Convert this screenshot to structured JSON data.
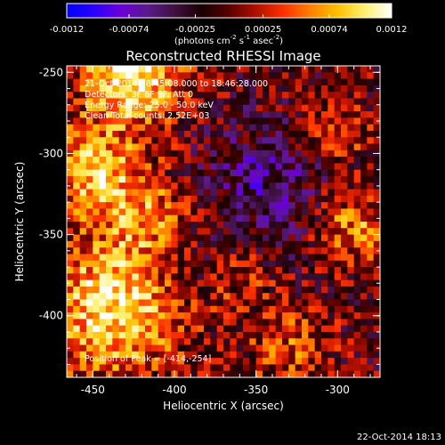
{
  "chart_data": {
    "type": "heatmap",
    "title": "Reconstructed RHESSI Image",
    "xlabel": "Heliocentric X (arcsec)",
    "ylabel": "Heliocentric Y (arcsec)",
    "xlim": [
      -466,
      -274
    ],
    "ylim": [
      -438,
      -246
    ],
    "x_ticks": [
      "-450",
      "-400",
      "-350",
      "-300"
    ],
    "x_tick_values": [
      -450,
      -400,
      -350,
      -300
    ],
    "y_ticks": [
      "-250",
      "-300",
      "-350",
      "-400"
    ],
    "y_tick_values": [
      -250,
      -300,
      -350,
      -400
    ],
    "grid": false,
    "colorbar": {
      "ticks": [
        "-0.0012",
        "-0.00074",
        "-0.00025",
        "0.00025",
        "0.00074",
        "0.0012"
      ],
      "tick_values": [
        -0.0012,
        -0.00074,
        -0.00025,
        0.00025,
        0.00074,
        0.0012
      ],
      "range": [
        -0.0012,
        0.0012
      ],
      "unit_label": "(photons cm",
      "unit_exp1": "-2",
      "unit_mid": " s",
      "unit_exp2": "-1",
      "unit_mid2": " asec",
      "unit_exp3": "-2",
      "unit_end": ")",
      "colormap": [
        "#0000ff",
        "#2a00ff",
        "#6a00d8",
        "#5a1a8a",
        "#401040",
        "#1a0000",
        "#5a0000",
        "#b01000",
        "#ff3000",
        "#ff8000",
        "#ffc000",
        "#fff070",
        "#ffffff"
      ]
    },
    "annotations": [
      "21-Oct-2014 18:45:08.000 to 18:46:28.000",
      "Detectors: 3F 6F 9F, Att 0",
      "Energy Range: 25.0 - 50.0 keV",
      "Clean     Total counts: 2.52E+03"
    ],
    "peak_label": "Position of Peak = [-414,-254]",
    "peak_position": [
      -414,
      -254
    ],
    "sources": [
      {
        "x": -425,
        "y": -250,
        "value": 0.0012,
        "radius": 22
      },
      {
        "x": -438,
        "y": -395,
        "value": 0.0011,
        "radius": 30
      },
      {
        "x": -450,
        "y": -310,
        "value": 0.0009,
        "radius": 20
      },
      {
        "x": -415,
        "y": -338,
        "value": 0.0006,
        "radius": 18
      },
      {
        "x": -290,
        "y": -345,
        "value": 0.0007,
        "radius": 16
      },
      {
        "x": -300,
        "y": -285,
        "value": 0.0005,
        "radius": 14
      },
      {
        "x": -330,
        "y": -420,
        "value": 0.0005,
        "radius": 18
      },
      {
        "x": -360,
        "y": -375,
        "value": 0.00035,
        "radius": 16
      },
      {
        "x": -345,
        "y": -320,
        "value": -0.00045,
        "radius": 26
      },
      {
        "x": -395,
        "y": -370,
        "value": -0.0003,
        "radius": 16
      }
    ],
    "cell_size_arcsec": 4
  },
  "footer_timestamp": "22-Oct-2014 18:13"
}
